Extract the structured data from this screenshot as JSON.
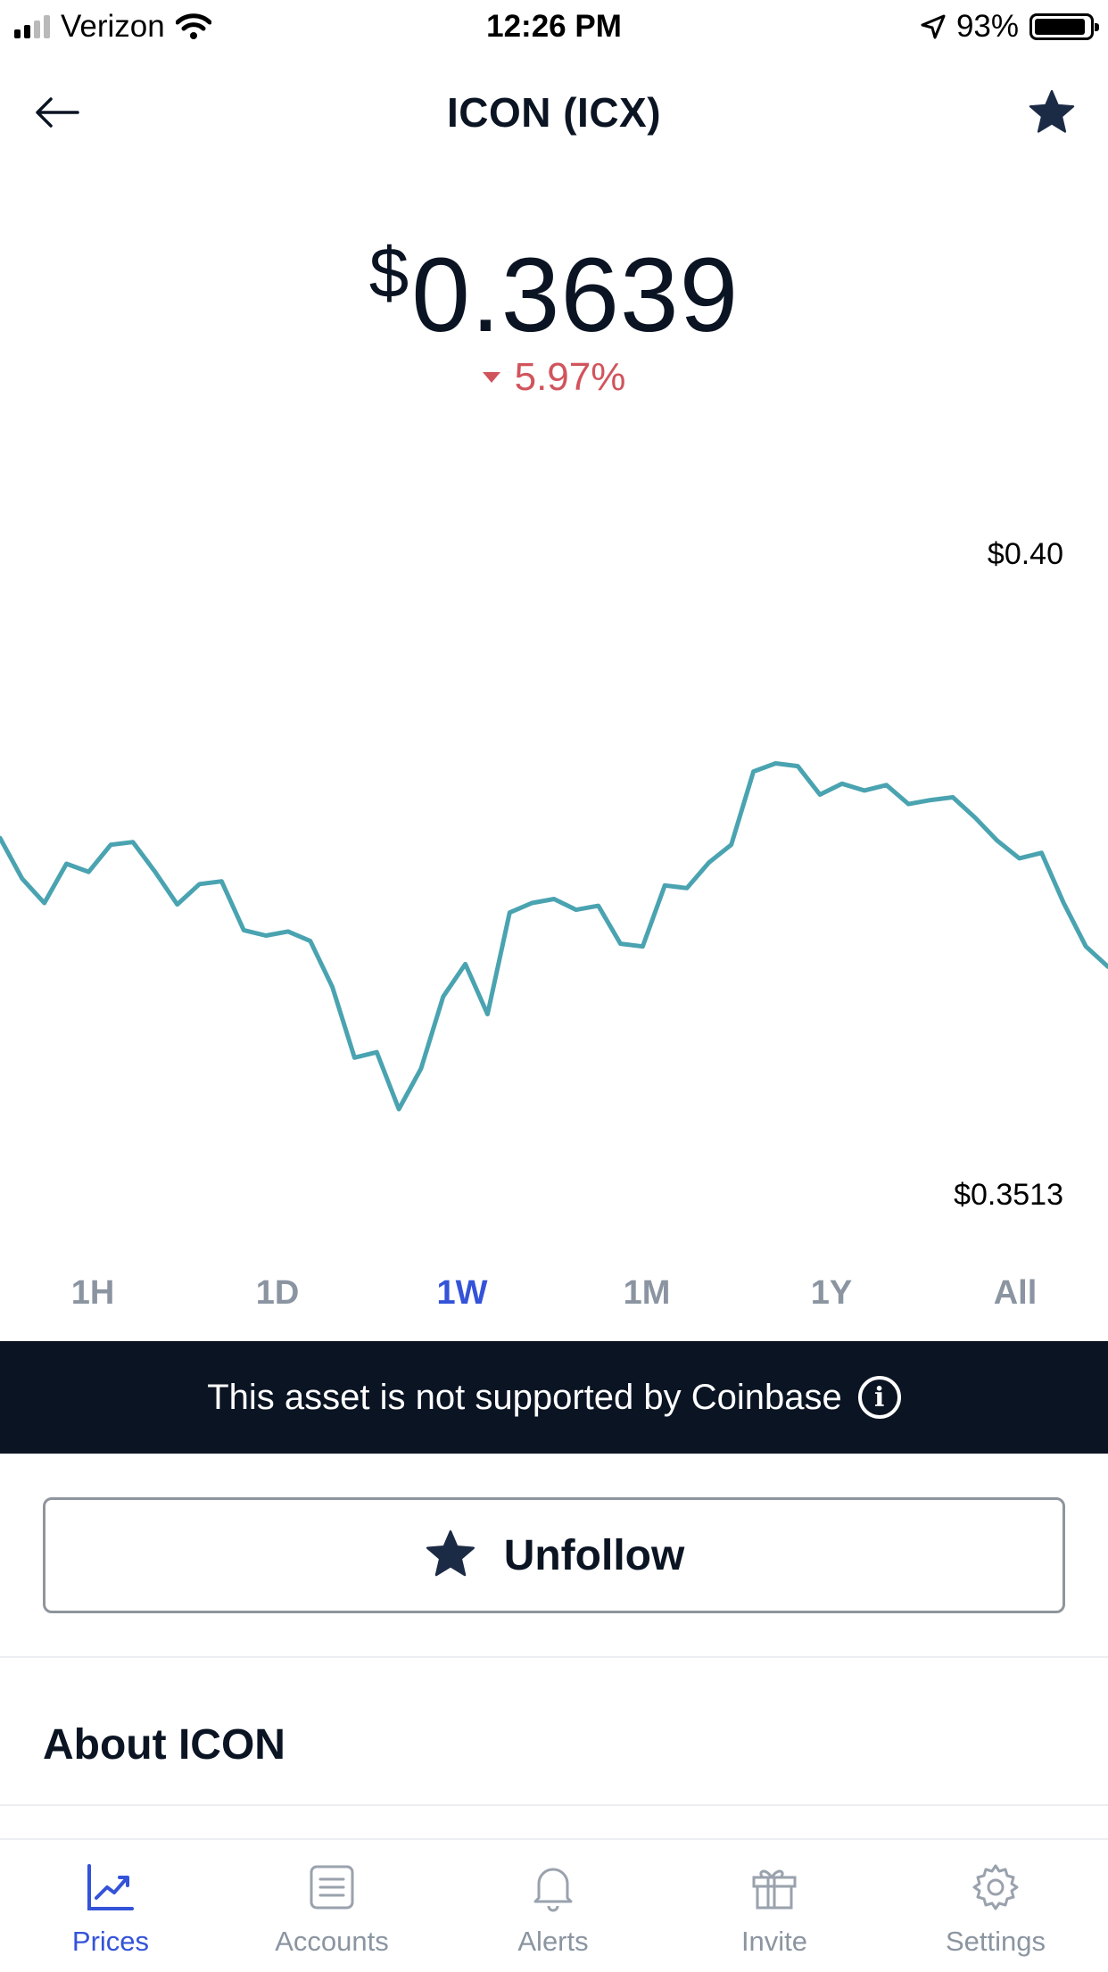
{
  "status_bar": {
    "carrier": "Verizon",
    "time": "12:26 PM",
    "battery": "93%",
    "battery_level": 0.93
  },
  "header": {
    "title": "ICON (ICX)",
    "favorited": true
  },
  "price": {
    "currency_symbol": "$",
    "value": "0.3639",
    "change": "5.97%",
    "change_direction": "down",
    "change_color": "#d1545c"
  },
  "chart_data": {
    "type": "line",
    "ylim": [
      0.3513,
      0.4
    ],
    "tick_labels": {
      "top": "$0.40",
      "bottom": "$0.3513"
    },
    "line_color": "#4aa3b0",
    "x": [
      0,
      2,
      4,
      6,
      8,
      10,
      12,
      14,
      16,
      18,
      20,
      22,
      24,
      26,
      28,
      30,
      32,
      34,
      36,
      38,
      40,
      42,
      44,
      46,
      48,
      50,
      52,
      54,
      56,
      58,
      60,
      62,
      64,
      66,
      68,
      70,
      72,
      74,
      76,
      78,
      80,
      82,
      84,
      86,
      88,
      90,
      92,
      94,
      96,
      98,
      100
    ],
    "values": [
      0.379,
      0.376,
      0.3742,
      0.3771,
      0.3765,
      0.3785,
      0.3787,
      0.3765,
      0.3741,
      0.3756,
      0.3758,
      0.3722,
      0.3718,
      0.3721,
      0.3714,
      0.368,
      0.3628,
      0.3632,
      0.359,
      0.362,
      0.3673,
      0.3697,
      0.366,
      0.3735,
      0.3742,
      0.3745,
      0.3737,
      0.374,
      0.3712,
      0.371,
      0.3755,
      0.3753,
      0.3772,
      0.3785,
      0.3839,
      0.3845,
      0.3843,
      0.3822,
      0.383,
      0.3825,
      0.3829,
      0.3815,
      0.3818,
      0.382,
      0.3805,
      0.3788,
      0.3775,
      0.3779,
      0.3742,
      0.371,
      0.3695
    ]
  },
  "time_ranges": [
    {
      "label": "1H",
      "active": false
    },
    {
      "label": "1D",
      "active": false
    },
    {
      "label": "1W",
      "active": true
    },
    {
      "label": "1M",
      "active": false
    },
    {
      "label": "1Y",
      "active": false
    },
    {
      "label": "All",
      "active": false
    }
  ],
  "banner": {
    "text": "This asset is not supported by Coinbase",
    "info_glyph": "i"
  },
  "follow_button": {
    "label": "Unfollow",
    "icon": "star-icon"
  },
  "about": {
    "title": "About ICON"
  },
  "tabbar": [
    {
      "label": "Prices",
      "icon": "chart-icon",
      "active": true
    },
    {
      "label": "Accounts",
      "icon": "list-icon",
      "active": false
    },
    {
      "label": "Alerts",
      "icon": "bell-icon",
      "active": false
    },
    {
      "label": "Invite",
      "icon": "gift-icon",
      "active": false
    },
    {
      "label": "Settings",
      "icon": "gear-icon",
      "active": false
    }
  ],
  "colors": {
    "accent": "#3453d9",
    "dark": "#0b1423",
    "muted": "#8b95a1",
    "negative": "#d1545c"
  }
}
